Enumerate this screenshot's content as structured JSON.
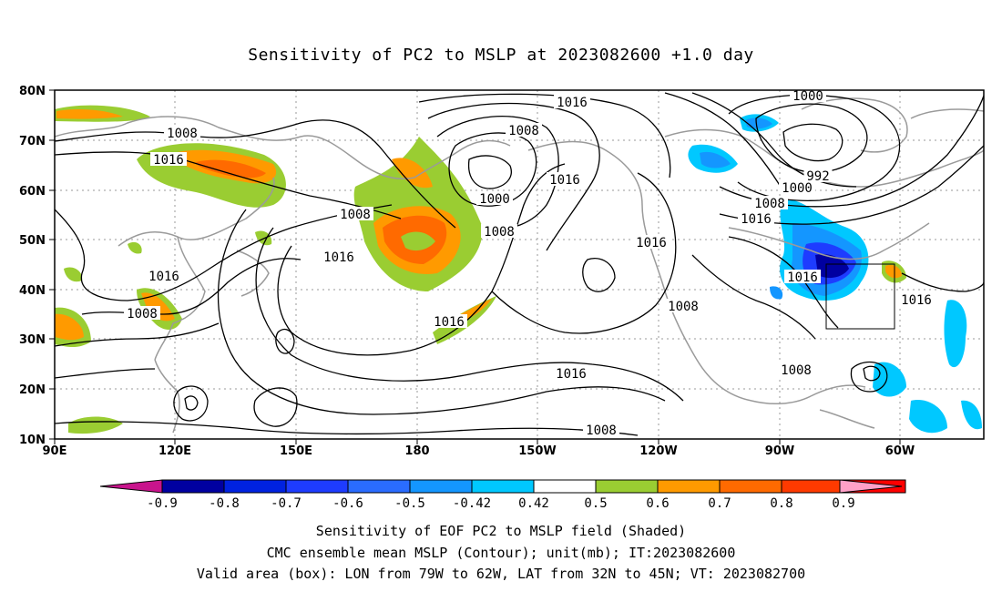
{
  "title": "Sensitivity of PC2 to MSLP at 2023082600 +1.0 day",
  "map": {
    "lon_labels": [
      "90E",
      "120E",
      "150E",
      "180",
      "150W",
      "120W",
      "90W",
      "60W"
    ],
    "lat_labels": [
      "80N",
      "70N",
      "60N",
      "50N",
      "40N",
      "30N",
      "20N",
      "10N"
    ],
    "contour_labels": [
      {
        "text": "1016",
        "name": "contour-label-1016-npac"
      },
      {
        "text": "1000",
        "name": "contour-label-1000-natl"
      },
      {
        "text": "1008",
        "name": "contour-label-1008-siberia"
      },
      {
        "text": "1016",
        "name": "contour-label-1016-siberia"
      },
      {
        "text": "1008",
        "name": "contour-label-1008-aleutian"
      },
      {
        "text": "1016",
        "name": "contour-label-1016-alaska"
      },
      {
        "text": "992",
        "name": "contour-label-992-greenland"
      },
      {
        "text": "1000",
        "name": "contour-label-1000-greenland"
      },
      {
        "text": "1008",
        "name": "contour-label-1008-labrador"
      },
      {
        "text": "1016",
        "name": "contour-label-1016-labrador"
      },
      {
        "text": "1000",
        "name": "contour-label-1000-bering"
      },
      {
        "text": "1008",
        "name": "contour-label-1008-kamchatka"
      },
      {
        "text": "1008",
        "name": "contour-label-1008-bering-south"
      },
      {
        "text": "1016",
        "name": "contour-label-1016-westcoast"
      },
      {
        "text": "1016",
        "name": "contour-label-1016-nw-pac"
      },
      {
        "text": "1016",
        "name": "contour-label-1016-japan"
      },
      {
        "text": "1008",
        "name": "contour-label-1008-china"
      },
      {
        "text": "1016",
        "name": "contour-label-1016-central-pac"
      },
      {
        "text": "1016",
        "name": "contour-label-1016-us-east"
      },
      {
        "text": "1016",
        "name": "contour-label-1016-atlantic"
      },
      {
        "text": "1008",
        "name": "contour-label-1008-california"
      },
      {
        "text": "1016",
        "name": "contour-label-1016-subtropical"
      },
      {
        "text": "1008",
        "name": "contour-label-1008-caribbean"
      },
      {
        "text": "1008",
        "name": "contour-label-1008-tropical-pac"
      }
    ]
  },
  "colorbar": {
    "ticks": [
      "-0.9",
      "-0.8",
      "-0.7",
      "-0.6",
      "-0.5",
      "-0.42",
      "0.42",
      "0.5",
      "0.6",
      "0.7",
      "0.8",
      "0.9"
    ],
    "colors": [
      "#0000a0",
      "#0022e0",
      "#1e3cff",
      "#2a6cff",
      "#1496ff",
      "#00c8ff",
      "#ffffff",
      "#9acd32",
      "#ff9a00",
      "#ff6a00",
      "#ff3a00",
      "#ff0000"
    ],
    "low_end_color": "#c8148c",
    "high_end_color": "#ffa0c8"
  },
  "footer": {
    "line1": "Sensitivity of EOF PC2 to MSLP field (Shaded)",
    "line2": "CMC ensemble mean MSLP (Contour); unit(mb); IT:2023082600",
    "line3": "Valid area (box): LON from 79W to 62W, LAT from 32N to 45N; VT: 2023082700"
  }
}
